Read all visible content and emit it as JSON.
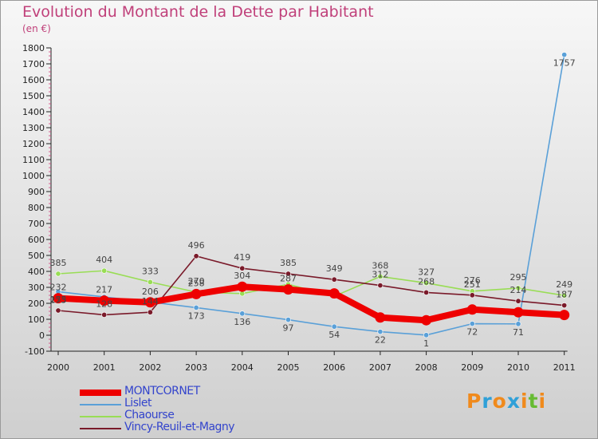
{
  "title": "Evolution du Montant de la Dette par Habitant",
  "subtitle": "(en €)",
  "chart_data": {
    "type": "line",
    "title": "Evolution du Montant de la Dette par Habitant",
    "subtitle": "(en €)",
    "xlabel": "",
    "ylabel": "",
    "x": [
      "2000",
      "2001",
      "2002",
      "2003",
      "2004",
      "2005",
      "2006",
      "2007",
      "2008",
      "2009",
      "2010",
      "2011"
    ],
    "ylim": [
      -100,
      1800
    ],
    "yticks": [
      -100,
      0,
      100,
      200,
      300,
      400,
      500,
      600,
      700,
      800,
      900,
      1000,
      1100,
      1200,
      1300,
      1400,
      1500,
      1600,
      1700,
      1800
    ],
    "grid": false,
    "legend_position": "bottom-left",
    "series": [
      {
        "name": "MONTCORNET",
        "color": "#ee0000",
        "values": [
          232,
          217,
          206,
          258,
          304,
          287,
          262,
          111,
          94,
          161,
          144,
          127
        ]
      },
      {
        "name": "Lislet",
        "color": "#5aa0d8",
        "values": [
          273,
          240,
          208,
          173,
          136,
          97,
          54,
          22,
          1,
          72,
          71,
          1757
        ]
      },
      {
        "name": "Chaourse",
        "color": "#99dd55",
        "values": [
          385,
          404,
          333,
          270,
          261,
          319,
          244,
          368,
          327,
          276,
          295,
          249
        ]
      },
      {
        "name": "Vincy-Reuil-et-Magny",
        "color": "#7a1a2a",
        "values": [
          155,
          128,
          144,
          496,
          419,
          385,
          349,
          312,
          268,
          251,
          214,
          187
        ]
      }
    ],
    "data_labels": {
      "MONTCORNET": [
        "232",
        "217",
        "206",
        "258",
        "304",
        "287",
        "",
        "",
        "",
        "",
        "",
        ""
      ],
      "Lislet": [
        "273",
        "",
        "",
        "173",
        "136",
        "97",
        "54",
        "22",
        "1",
        "72",
        "71",
        "1757"
      ],
      "Chaourse": [
        "385",
        "404",
        "333",
        "270",
        "",
        "",
        "",
        "368",
        "327",
        "276",
        "295",
        "249"
      ],
      "Vincy-Reuil-et-Magny": [
        "155",
        "128",
        "144",
        "496",
        "419",
        "385",
        "349",
        "312",
        "268",
        "251",
        "214",
        "187"
      ]
    }
  },
  "logo_text": "Proxiti",
  "logo_colors": [
    "#f08a1c",
    "#2fa0d8",
    "#f08a1c",
    "#2fa0d8",
    "#f08a1c",
    "#66bb33",
    "#f08a1c"
  ]
}
